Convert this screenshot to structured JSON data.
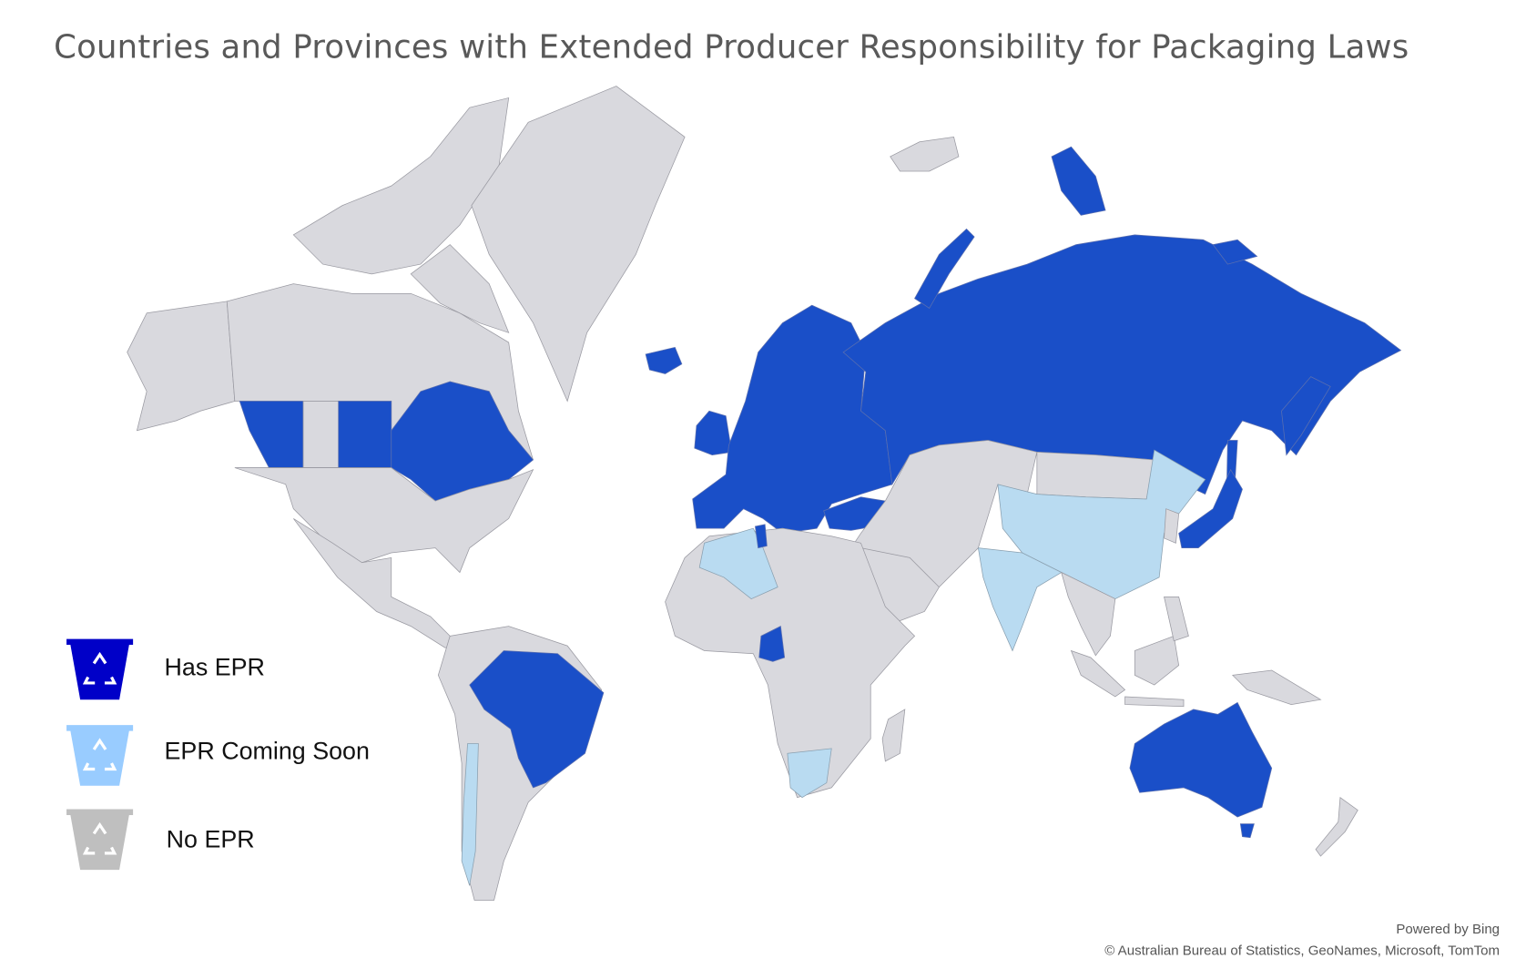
{
  "title": "Countries and Provinces with Extended Producer Responsibility for Packaging Laws",
  "legend": [
    {
      "label": "Has EPR",
      "color": "#0000c8",
      "map_color": "#1a4fc8",
      "icon": "recycle-bin-icon"
    },
    {
      "label": "EPR Coming Soon",
      "color": "#99ccff",
      "map_color": "#b9dbf1",
      "icon": "recycle-bin-icon"
    },
    {
      "label": "No EPR",
      "color": "#bfbfbf",
      "map_color": "#d9d9de",
      "icon": "recycle-bin-icon"
    }
  ],
  "attribution": {
    "powered": "Powered by Bing",
    "copyright": "© Australian Bureau of Statistics, GeoNames, Microsoft, TomTom"
  }
}
